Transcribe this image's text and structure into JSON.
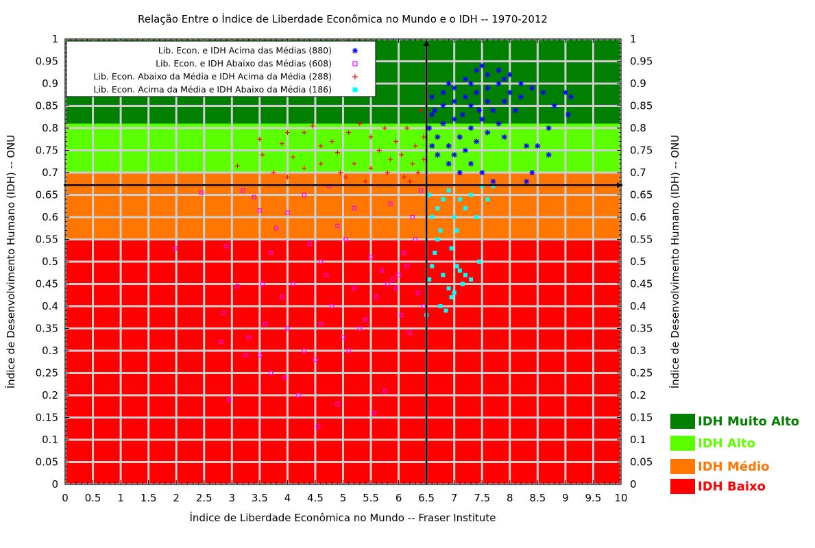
{
  "chart_data": {
    "type": "scatter",
    "title": "Relação Entre o Índice de Liberdade Econômica no Mundo e o IDH -- 1970-2012",
    "xlabel": "Índice de Liberdade Econômica no Mundo -- Fraser Institute",
    "ylabel": "Índice de Desenvolvimento Humano (IDH) -- ONU",
    "ylabel_right": "Índice de Desenvolvimento Humano (IDH) -- ONU",
    "xlim": [
      0,
      10
    ],
    "ylim": [
      0,
      1
    ],
    "x_ticks": [
      "0",
      "0.5",
      "1",
      "1.5",
      "2",
      "2.5",
      "3",
      "3.5",
      "4",
      "4.5",
      "5",
      "5.5",
      "6",
      "6.5",
      "7",
      "7.5",
      "8",
      "8.5",
      "9",
      "9.5",
      "10"
    ],
    "y_ticks": [
      "0",
      "0.05",
      "0.1",
      "0.15",
      "0.2",
      "0.25",
      "0.3",
      "0.35",
      "0.4",
      "0.45",
      "0.5",
      "0.55",
      "0.6",
      "0.65",
      "0.7",
      "0.75",
      "0.8",
      "0.85",
      "0.9",
      "0.95",
      "1"
    ],
    "grid": true,
    "legend_position": "top-left",
    "mean_lines": {
      "x": 6.5,
      "y": 0.672
    },
    "background_bands": [
      {
        "name": "IDH Muito Alto",
        "from": 0.81,
        "to": 1.0,
        "color": "#007f00"
      },
      {
        "name": "IDH Alto",
        "from": 0.7,
        "to": 0.81,
        "color": "#5cff00"
      },
      {
        "name": "IDH Médio",
        "from": 0.55,
        "to": 0.7,
        "color": "#ff7700"
      },
      {
        "name": "IDH Baixo",
        "from": 0.0,
        "to": 0.55,
        "color": "#ff0000"
      }
    ],
    "series": [
      {
        "name": "Lib. Econ. e IDH Acima das Médias  (880)",
        "marker": "asterisk",
        "color": "#0000ff",
        "points": [
          [
            6.6,
            0.87
          ],
          [
            6.8,
            0.88
          ],
          [
            7.0,
            0.89
          ],
          [
            7.2,
            0.91
          ],
          [
            7.4,
            0.93
          ],
          [
            7.5,
            0.94
          ],
          [
            7.6,
            0.92
          ],
          [
            7.8,
            0.93
          ],
          [
            8.0,
            0.92
          ],
          [
            8.2,
            0.9
          ],
          [
            8.4,
            0.89
          ],
          [
            8.6,
            0.88
          ],
          [
            8.8,
            0.85
          ],
          [
            9.0,
            0.88
          ],
          [
            9.1,
            0.87
          ],
          [
            9.05,
            0.83
          ],
          [
            8.7,
            0.8
          ],
          [
            8.7,
            0.74
          ],
          [
            8.5,
            0.76
          ],
          [
            8.4,
            0.7
          ],
          [
            8.3,
            0.68
          ],
          [
            8.3,
            0.76
          ],
          [
            7.9,
            0.78
          ],
          [
            7.7,
            0.68
          ],
          [
            7.5,
            0.7
          ],
          [
            7.3,
            0.72
          ],
          [
            7.1,
            0.7
          ],
          [
            6.9,
            0.72
          ],
          [
            6.7,
            0.74
          ],
          [
            6.6,
            0.76
          ],
          [
            6.55,
            0.8
          ],
          [
            6.6,
            0.83
          ],
          [
            6.8,
            0.85
          ],
          [
            7.0,
            0.86
          ],
          [
            7.2,
            0.87
          ],
          [
            7.4,
            0.88
          ],
          [
            7.6,
            0.89
          ],
          [
            7.8,
            0.9
          ],
          [
            8.0,
            0.88
          ],
          [
            7.7,
            0.84
          ],
          [
            7.5,
            0.82
          ],
          [
            7.3,
            0.8
          ],
          [
            7.1,
            0.78
          ],
          [
            6.9,
            0.76
          ],
          [
            6.7,
            0.78
          ],
          [
            7.0,
            0.82
          ],
          [
            7.3,
            0.85
          ],
          [
            7.6,
            0.86
          ],
          [
            7.9,
            0.86
          ],
          [
            8.1,
            0.84
          ],
          [
            7.8,
            0.81
          ],
          [
            7.6,
            0.79
          ],
          [
            7.4,
            0.77
          ],
          [
            7.2,
            0.75
          ],
          [
            7.0,
            0.74
          ],
          [
            6.8,
            0.81
          ],
          [
            6.65,
            0.84
          ],
          [
            7.15,
            0.83
          ],
          [
            7.45,
            0.84
          ],
          [
            8.2,
            0.87
          ],
          [
            7.9,
            0.91
          ],
          [
            7.3,
            0.9
          ],
          [
            6.9,
            0.9
          ]
        ]
      },
      {
        "name": "Lib. Econ. e IDH Abaixo das Médias (608)",
        "marker": "open-square",
        "color": "#ff00ff",
        "points": [
          [
            1.98,
            0.53
          ],
          [
            2.45,
            0.655
          ],
          [
            2.8,
            0.32
          ],
          [
            2.85,
            0.385
          ],
          [
            2.9,
            0.535
          ],
          [
            2.95,
            0.19
          ],
          [
            3.1,
            0.445
          ],
          [
            3.2,
            0.66
          ],
          [
            3.25,
            0.29
          ],
          [
            3.3,
            0.33
          ],
          [
            3.4,
            0.645
          ],
          [
            3.5,
            0.615
          ],
          [
            3.55,
            0.45
          ],
          [
            3.6,
            0.36
          ],
          [
            3.7,
            0.25
          ],
          [
            3.8,
            0.575
          ],
          [
            3.9,
            0.42
          ],
          [
            3.95,
            0.24
          ],
          [
            4.0,
            0.61
          ],
          [
            4.1,
            0.45
          ],
          [
            4.2,
            0.2
          ],
          [
            4.3,
            0.65
          ],
          [
            4.4,
            0.54
          ],
          [
            4.5,
            0.28
          ],
          [
            4.55,
            0.13
          ],
          [
            4.6,
            0.36
          ],
          [
            4.7,
            0.47
          ],
          [
            4.75,
            0.67
          ],
          [
            4.8,
            0.4
          ],
          [
            4.9,
            0.18
          ],
          [
            5.0,
            0.33
          ],
          [
            5.05,
            0.55
          ],
          [
            5.1,
            0.3
          ],
          [
            5.2,
            0.44
          ],
          [
            5.3,
            0.35
          ],
          [
            5.4,
            0.37
          ],
          [
            5.5,
            0.51
          ],
          [
            5.55,
            0.16
          ],
          [
            5.6,
            0.42
          ],
          [
            5.7,
            0.48
          ],
          [
            5.75,
            0.21
          ],
          [
            5.8,
            0.45
          ],
          [
            5.85,
            0.63
          ],
          [
            5.9,
            0.46
          ],
          [
            5.95,
            0.44
          ],
          [
            6.0,
            0.47
          ],
          [
            6.05,
            0.38
          ],
          [
            6.1,
            0.52
          ],
          [
            6.15,
            0.49
          ],
          [
            6.2,
            0.34
          ],
          [
            6.25,
            0.6
          ],
          [
            6.3,
            0.55
          ],
          [
            6.35,
            0.43
          ],
          [
            6.4,
            0.66
          ],
          [
            6.45,
            0.4
          ],
          [
            5.2,
            0.62
          ],
          [
            4.9,
            0.58
          ],
          [
            4.6,
            0.5
          ],
          [
            4.3,
            0.3
          ],
          [
            4.0,
            0.35
          ],
          [
            3.7,
            0.52
          ],
          [
            3.5,
            0.29
          ]
        ]
      },
      {
        "name": "Lib. Econ. Abaixo da Média e IDH Acima da Média (288)",
        "marker": "plus",
        "color": "#ff0000",
        "points": [
          [
            3.1,
            0.715
          ],
          [
            3.5,
            0.775
          ],
          [
            3.55,
            0.74
          ],
          [
            3.75,
            0.7
          ],
          [
            3.9,
            0.765
          ],
          [
            4.0,
            0.79
          ],
          [
            4.1,
            0.735
          ],
          [
            4.3,
            0.79
          ],
          [
            4.45,
            0.805
          ],
          [
            4.6,
            0.72
          ],
          [
            4.8,
            0.77
          ],
          [
            4.95,
            0.7
          ],
          [
            5.1,
            0.79
          ],
          [
            5.3,
            0.81
          ],
          [
            5.5,
            0.78
          ],
          [
            5.65,
            0.75
          ],
          [
            5.75,
            0.8
          ],
          [
            5.85,
            0.73
          ],
          [
            5.95,
            0.77
          ],
          [
            6.05,
            0.74
          ],
          [
            6.15,
            0.8
          ],
          [
            6.25,
            0.72
          ],
          [
            6.3,
            0.76
          ],
          [
            6.35,
            0.7
          ],
          [
            6.4,
            0.84
          ],
          [
            6.45,
            0.78
          ],
          [
            6.1,
            0.69
          ],
          [
            5.8,
            0.7
          ],
          [
            5.5,
            0.71
          ],
          [
            5.2,
            0.72
          ],
          [
            4.9,
            0.745
          ],
          [
            4.6,
            0.76
          ],
          [
            4.3,
            0.71
          ],
          [
            4.0,
            0.69
          ],
          [
            5.05,
            0.69
          ],
          [
            5.4,
            0.68
          ],
          [
            6.2,
            0.68
          ],
          [
            6.45,
            0.73
          ]
        ]
      },
      {
        "name": "Lib. Econ. Acima da Média e IDH Abaixo da Média (186)",
        "marker": "filled-square",
        "color": "#00ffff",
        "points": [
          [
            6.5,
            0.38
          ],
          [
            6.55,
            0.46
          ],
          [
            6.6,
            0.49
          ],
          [
            6.65,
            0.52
          ],
          [
            6.7,
            0.55
          ],
          [
            6.75,
            0.4
          ],
          [
            6.8,
            0.47
          ],
          [
            6.85,
            0.39
          ],
          [
            6.9,
            0.44
          ],
          [
            6.95,
            0.42
          ],
          [
            7.0,
            0.43
          ],
          [
            7.05,
            0.49
          ],
          [
            7.1,
            0.48
          ],
          [
            7.15,
            0.45
          ],
          [
            7.2,
            0.47
          ],
          [
            7.3,
            0.46
          ],
          [
            7.45,
            0.5
          ],
          [
            6.6,
            0.6
          ],
          [
            6.7,
            0.62
          ],
          [
            6.8,
            0.64
          ],
          [
            6.9,
            0.66
          ],
          [
            7.0,
            0.6
          ],
          [
            7.1,
            0.64
          ],
          [
            7.2,
            0.62
          ],
          [
            7.3,
            0.65
          ],
          [
            7.4,
            0.6
          ],
          [
            7.5,
            0.67
          ],
          [
            7.6,
            0.64
          ],
          [
            7.7,
            0.67
          ],
          [
            6.55,
            0.65
          ],
          [
            6.75,
            0.57
          ],
          [
            7.05,
            0.57
          ],
          [
            6.95,
            0.53
          ]
        ]
      }
    ]
  }
}
